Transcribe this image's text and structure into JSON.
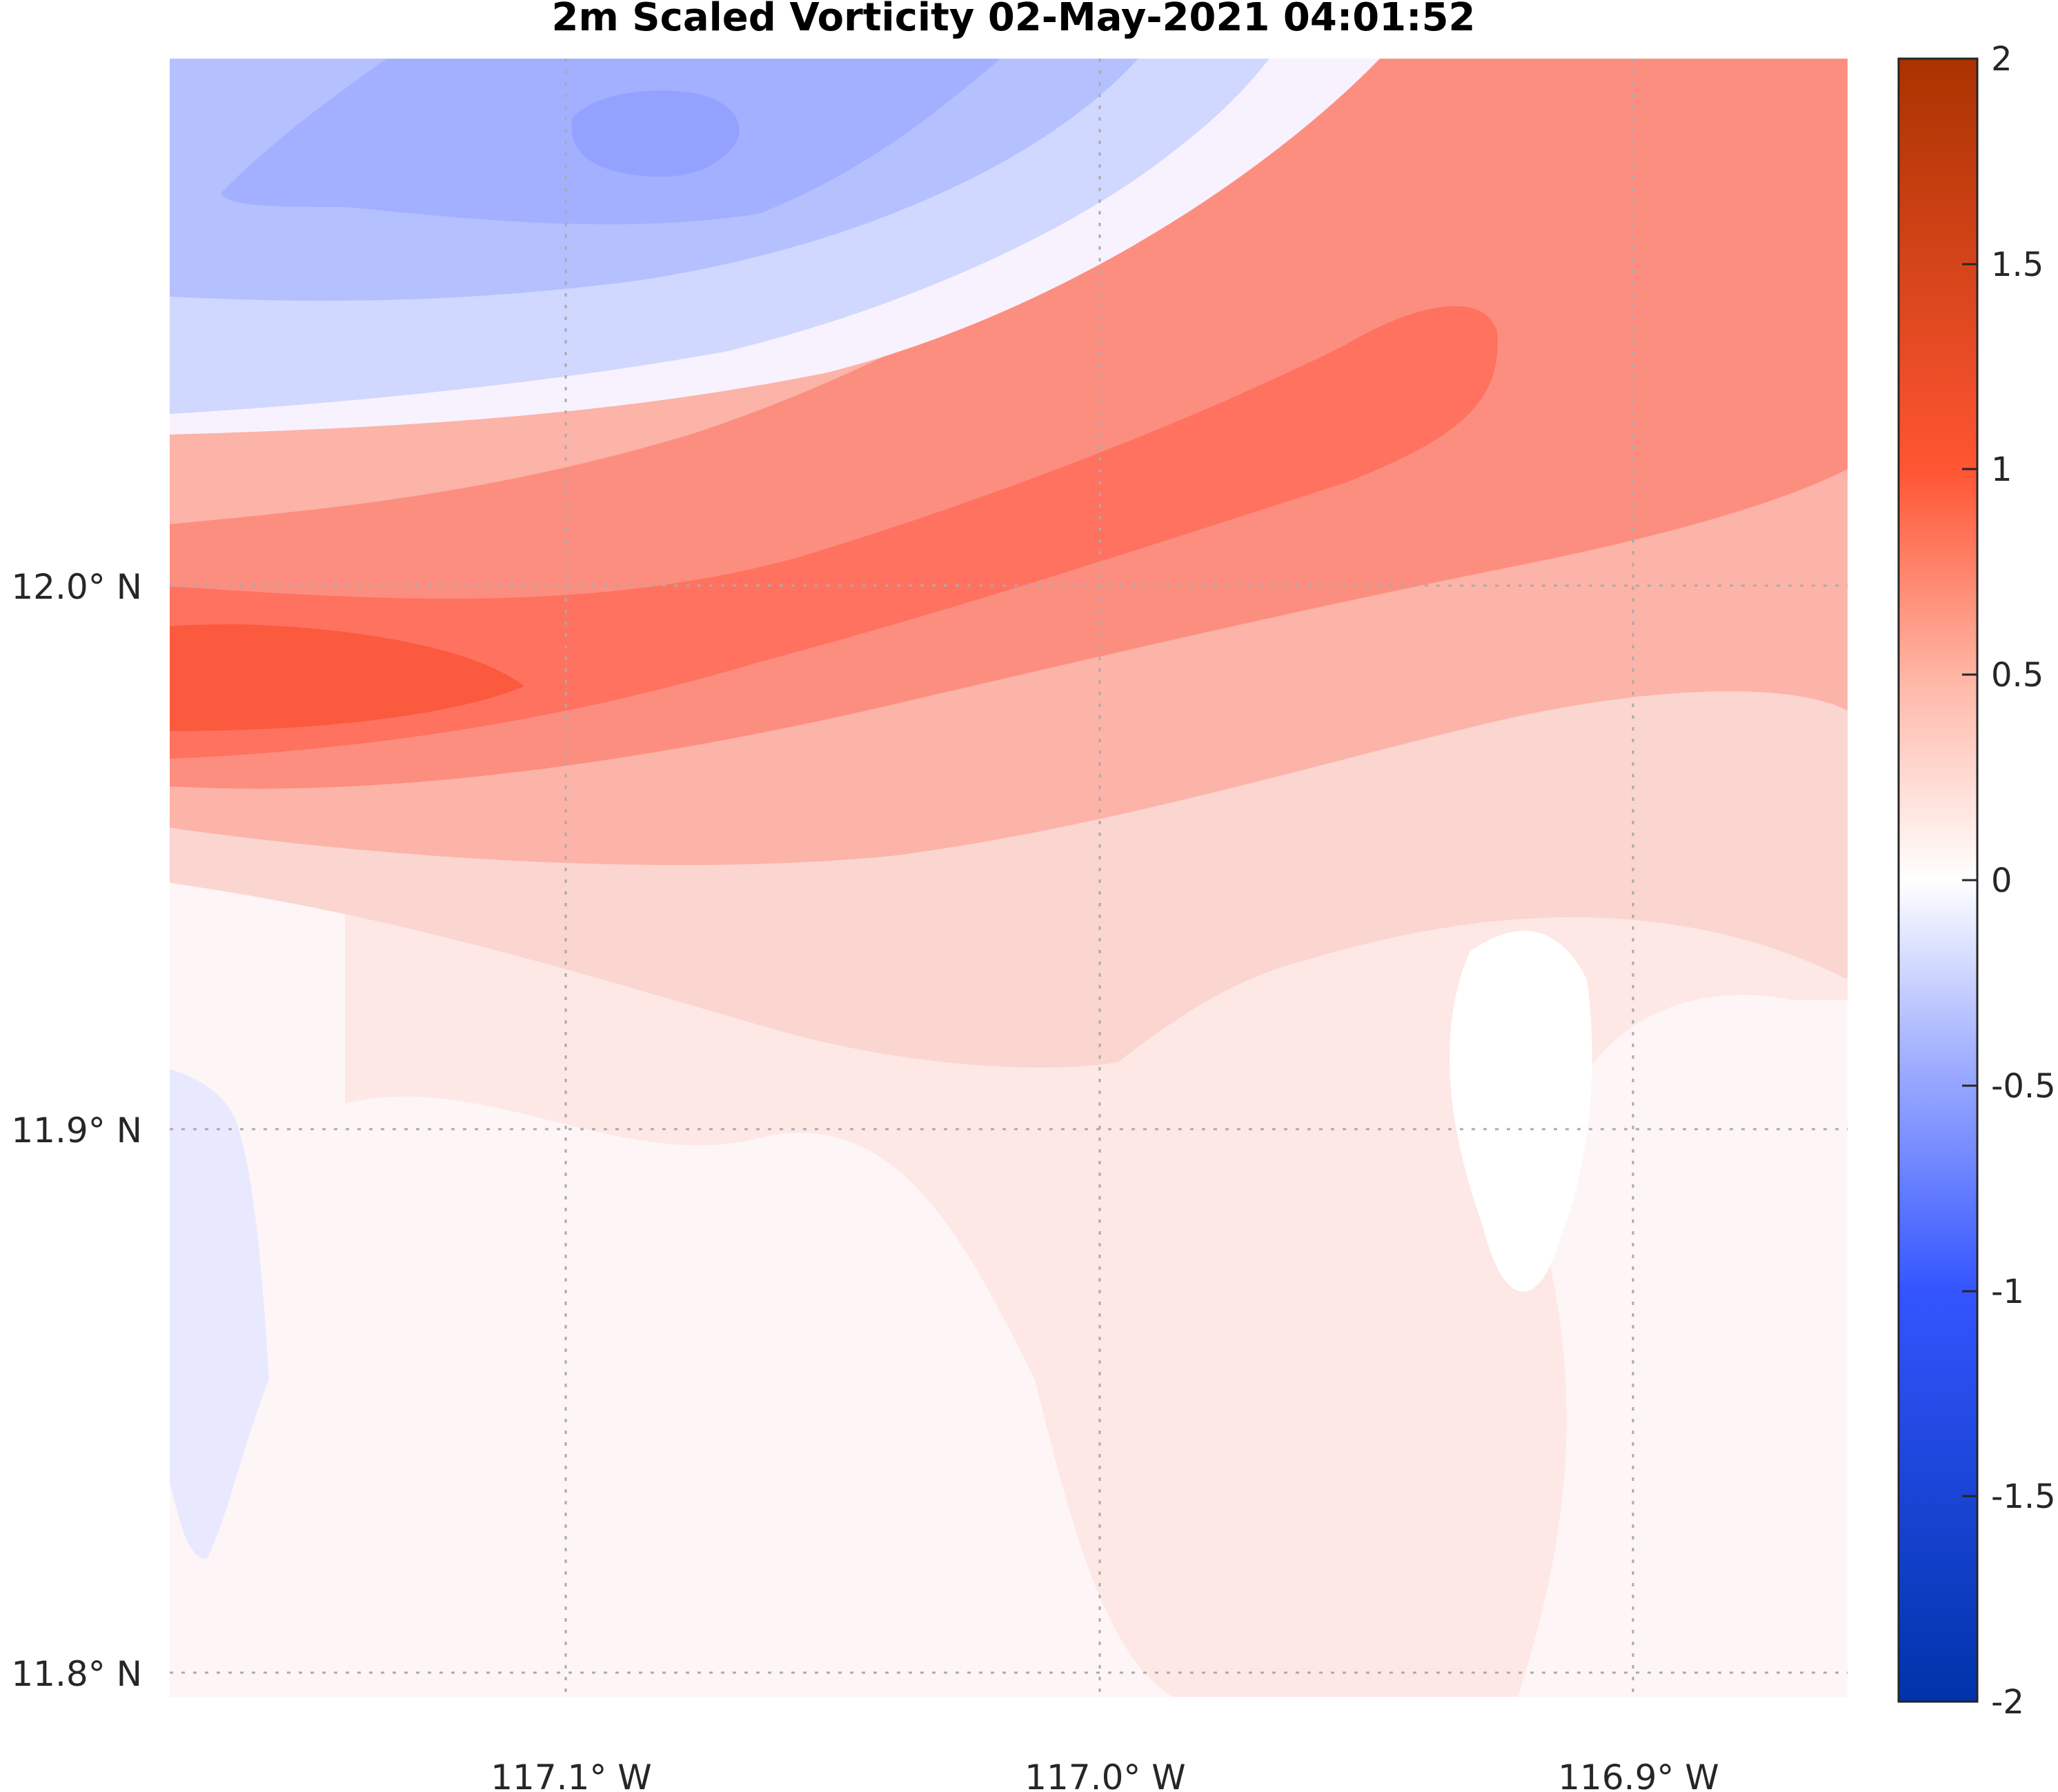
{
  "chart_data": {
    "type": "heatmap",
    "title": "2m Scaled Vorticity  02-May-2021 04:01:52",
    "xlabel": "",
    "ylabel": "",
    "x_ticks": [
      {
        "value": -117.1,
        "label": "117.1° W"
      },
      {
        "value": -117.0,
        "label": "117.0° W"
      },
      {
        "value": -116.9,
        "label": "116.9° W"
      }
    ],
    "y_ticks": [
      {
        "value": 12.0,
        "label": "12.0° N"
      },
      {
        "value": 11.9,
        "label": "11.9° N"
      },
      {
        "value": 11.8,
        "label": "11.8° N"
      }
    ],
    "xlim": [
      -117.174,
      -116.86
    ],
    "ylim": [
      11.796,
      12.098
    ],
    "grid": true,
    "colorbar": {
      "range": [
        -2,
        2
      ],
      "ticks": [
        2,
        1.5,
        1,
        0.5,
        0,
        -0.5,
        -1,
        -1.5,
        -2
      ],
      "tick_labels": [
        "2",
        "1.5",
        "1",
        "0.5",
        "0",
        "-0.5",
        "-1",
        "-1.5",
        "-2"
      ],
      "colormap": "blue-white-red",
      "low_color": "#0033aa",
      "mid_color": "#ffffff",
      "high_color": "#aa3300"
    },
    "field_features": [
      {
        "name": "positive vorticity band",
        "center": [
          -117.15,
          11.975
        ],
        "peak_value": 1.05
      },
      {
        "name": "positive vorticity ridge",
        "center": [
          -116.94,
          12.04
        ],
        "peak_value": 0.8
      },
      {
        "name": "negative vorticity core",
        "center": [
          -117.09,
          12.084
        ],
        "peak_value": -0.35
      },
      {
        "name": "weak negative region",
        "center": [
          -117.16,
          11.86
        ],
        "peak_value": -0.05
      }
    ]
  }
}
